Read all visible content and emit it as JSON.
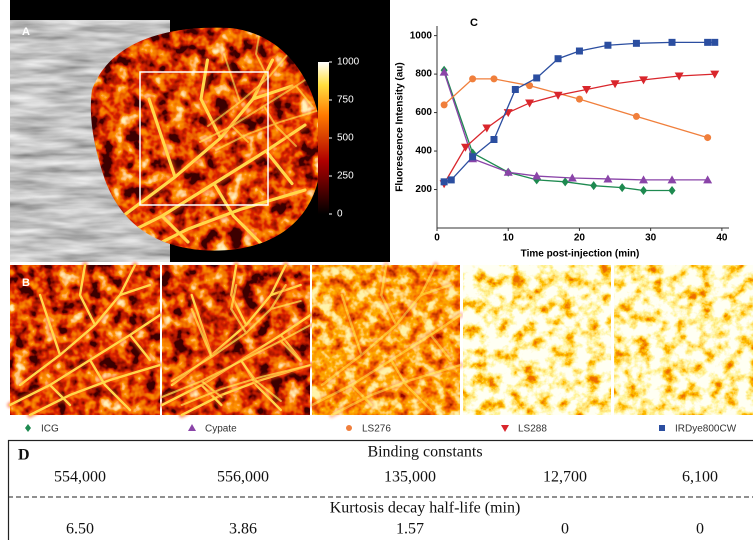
{
  "panel_a": {
    "label": "A",
    "colorbar": {
      "lim": [
        0,
        1000
      ],
      "ticks": [
        1000,
        750,
        500,
        250,
        0
      ]
    }
  },
  "panel_b": {
    "label": "B"
  },
  "chart_data": {
    "type": "line",
    "label": "C",
    "xlabel": "Time post-injection (min)",
    "ylabel": "Fluorescence Intensity (au)",
    "xlim": [
      0,
      41
    ],
    "ylim": [
      0,
      1050
    ],
    "xticks": [
      0,
      10,
      20,
      30,
      40
    ],
    "yticks": [
      200,
      400,
      600,
      800,
      1000
    ],
    "series": [
      {
        "name": "ICG",
        "color": "#1e8a50",
        "marker": "diamond",
        "x": [
          1,
          5,
          10,
          14,
          18,
          22,
          26,
          29,
          33
        ],
        "values": [
          820,
          390,
          290,
          250,
          240,
          220,
          210,
          195,
          195
        ]
      },
      {
        "name": "Cypate",
        "color": "#8a44a8",
        "marker": "triangle-up",
        "x": [
          1,
          5,
          10,
          14,
          19,
          24,
          29,
          33,
          38
        ],
        "values": [
          810,
          360,
          290,
          270,
          260,
          255,
          250,
          250,
          250
        ]
      },
      {
        "name": "LS276",
        "color": "#f07f3c",
        "marker": "circle",
        "x": [
          1,
          5,
          8,
          13,
          20,
          28,
          38
        ],
        "values": [
          640,
          775,
          775,
          740,
          670,
          580,
          470
        ]
      },
      {
        "name": "LS288",
        "color": "#d9262c",
        "marker": "triangle-down",
        "x": [
          1,
          4,
          7,
          10,
          13,
          17,
          21,
          25,
          29,
          34,
          39
        ],
        "values": [
          230,
          420,
          520,
          600,
          650,
          690,
          720,
          750,
          770,
          790,
          800
        ]
      },
      {
        "name": "IRDye800CW",
        "color": "#2b4ea0",
        "marker": "square",
        "x": [
          1,
          2,
          5,
          8,
          11,
          14,
          17,
          20,
          24,
          28,
          33,
          38,
          39
        ],
        "values": [
          240,
          250,
          370,
          460,
          720,
          780,
          880,
          920,
          950,
          960,
          965,
          965,
          965
        ]
      }
    ]
  },
  "table": {
    "label": "D",
    "sections": [
      {
        "title": "Binding constants",
        "values": [
          "554,000",
          "556,000",
          "135,000",
          "12,700",
          "6,100"
        ]
      },
      {
        "title": "Kurtosis decay half-life (min)",
        "values": [
          "6.50",
          "3.86",
          "1.57",
          "0",
          "0"
        ]
      }
    ]
  }
}
